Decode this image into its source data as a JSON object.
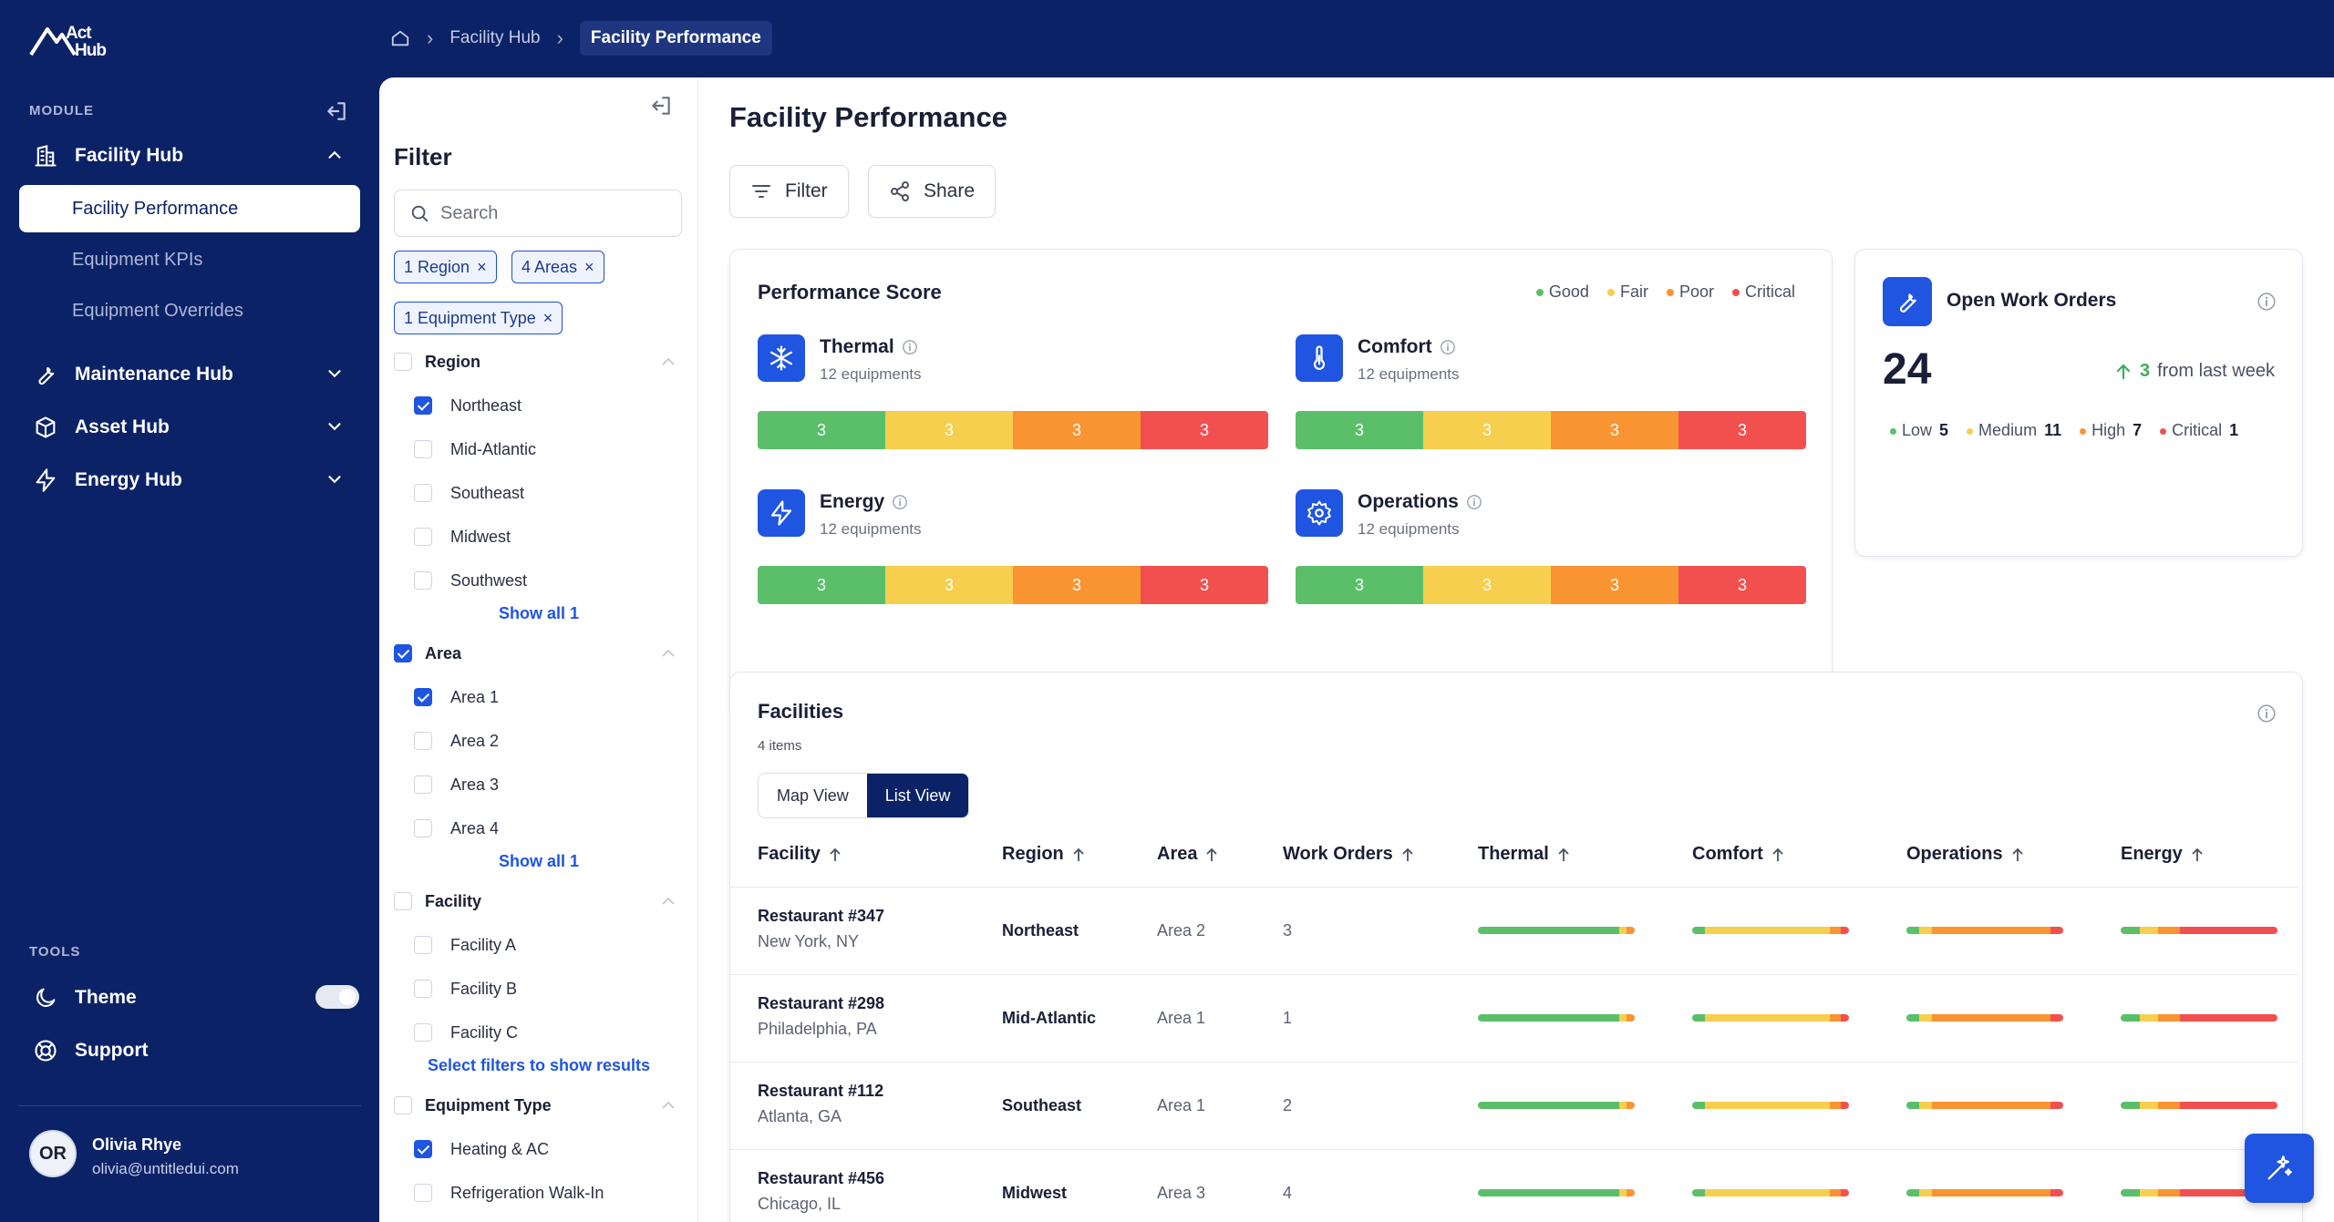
{
  "app": {
    "logo_text_top": "Act",
    "logo_text_bottom": "Hub"
  },
  "breadcrumb": {
    "items": [
      "Facility Hub"
    ],
    "current": "Facility Performance"
  },
  "sidebar": {
    "module_label": "MODULE",
    "nav": [
      {
        "label": "Facility Hub",
        "icon": "building-icon",
        "expanded": true,
        "children": [
          "Facility Performance",
          "Equipment KPIs",
          "Equipment Overrides"
        ],
        "active_child": 0
      },
      {
        "label": "Maintenance Hub",
        "icon": "wrench-icon",
        "expanded": false
      },
      {
        "label": "Asset Hub",
        "icon": "box-icon",
        "expanded": false
      },
      {
        "label": "Energy Hub",
        "icon": "lightning-icon",
        "expanded": false
      }
    ],
    "tools_label": "TOOLS",
    "tools": [
      {
        "label": "Theme",
        "icon": "moon-icon"
      },
      {
        "label": "Support",
        "icon": "lifebuoy-icon"
      }
    ],
    "user": {
      "initials": "OR",
      "name": "Olivia Rhye",
      "email": "olivia@untitledui.com"
    }
  },
  "filter": {
    "title": "Filter",
    "search_placeholder": "Search",
    "chips": [
      "1 Region",
      "4 Areas",
      "1 Equipment Type"
    ],
    "groups": {
      "region": {
        "label": "Region",
        "checked": false,
        "options": [
          {
            "label": "Northeast",
            "checked": true
          },
          {
            "label": "Mid-Atlantic",
            "checked": false
          },
          {
            "label": "Southeast",
            "checked": false
          },
          {
            "label": "Midwest",
            "checked": false
          },
          {
            "label": "Southwest",
            "checked": false
          }
        ],
        "show_all": "Show all 1"
      },
      "area": {
        "label": "Area",
        "checked": true,
        "options": [
          {
            "label": "Area 1",
            "checked": true
          },
          {
            "label": "Area 2",
            "checked": false
          },
          {
            "label": "Area 3",
            "checked": false
          },
          {
            "label": "Area 4",
            "checked": false
          }
        ],
        "show_all": "Show all 1"
      },
      "facility": {
        "label": "Facility",
        "checked": false,
        "options": [
          {
            "label": "Facility A",
            "checked": false
          },
          {
            "label": "Facility B",
            "checked": false
          },
          {
            "label": "Facility C",
            "checked": false
          }
        ],
        "hint": "Select filters to show results"
      },
      "equipment": {
        "label": "Equipment Type",
        "checked": false,
        "options": [
          {
            "label": "Heating & AC",
            "checked": true
          },
          {
            "label": "Refrigeration Walk-In",
            "checked": false
          }
        ]
      }
    }
  },
  "main": {
    "title": "Facility Performance",
    "buttons": {
      "filter": "Filter",
      "share": "Share"
    },
    "performance": {
      "title": "Performance Score",
      "legend": [
        "Good",
        "Fair",
        "Poor",
        "Critical"
      ],
      "colors": {
        "good": "#5bbf6a",
        "fair": "#f7cf4f",
        "poor": "#f89432",
        "critical": "#f1504f"
      },
      "metrics": [
        {
          "name": "Thermal",
          "sub": "12 equipments",
          "icon": "snowflake-icon",
          "values": [
            "3",
            "3",
            "3",
            "3"
          ]
        },
        {
          "name": "Comfort",
          "sub": "12 equipments",
          "icon": "thermometer-icon",
          "values": [
            "3",
            "3",
            "3",
            "3"
          ]
        },
        {
          "name": "Energy",
          "sub": "12 equipments",
          "icon": "lightning-icon",
          "values": [
            "3",
            "3",
            "3",
            "3"
          ]
        },
        {
          "name": "Operations",
          "sub": "12 equipments",
          "icon": "gear-icon",
          "values": [
            "3",
            "3",
            "3",
            "3"
          ]
        }
      ]
    },
    "work_orders": {
      "title": "Open Work Orders",
      "count": "24",
      "trend_value": "3",
      "trend_text": "from last week",
      "levels": [
        {
          "label": "Low",
          "value": "5",
          "color": "#5bbf6a"
        },
        {
          "label": "Medium",
          "value": "11",
          "color": "#f7cf4f"
        },
        {
          "label": "High",
          "value": "7",
          "color": "#f89432"
        },
        {
          "label": "Critical",
          "value": "1",
          "color": "#f1504f"
        }
      ]
    },
    "facilities": {
      "title": "Facilities",
      "count": "4 items",
      "views": [
        "Map View",
        "List View"
      ],
      "active_view": "List View",
      "columns": [
        "Facility",
        "Region",
        "Area",
        "Work Orders",
        "Thermal",
        "Comfort",
        "Operations",
        "Energy"
      ],
      "rows": [
        {
          "name": "Restaurant #347",
          "city": "New York, NY",
          "region": "Northeast",
          "area": "Area 2",
          "work_orders": "3"
        },
        {
          "name": "Restaurant #298",
          "city": "Philadelphia, PA",
          "region": "Mid-Atlantic",
          "area": "Area 1",
          "work_orders": "1"
        },
        {
          "name": "Restaurant #112",
          "city": "Atlanta, GA",
          "region": "Southeast",
          "area": "Area 1",
          "work_orders": "2"
        },
        {
          "name": "Restaurant #456",
          "city": "Chicago, IL",
          "region": "Midwest",
          "area": "Area 3",
          "work_orders": "4"
        }
      ],
      "score_bars": {
        "thermal": [
          0.9,
          0.05,
          0.05,
          0.0
        ],
        "comfort": [
          0.08,
          0.8,
          0.07,
          0.05
        ],
        "operations": [
          0.08,
          0.08,
          0.76,
          0.08
        ],
        "energy": [
          0.12,
          0.12,
          0.14,
          0.62
        ]
      }
    }
  }
}
